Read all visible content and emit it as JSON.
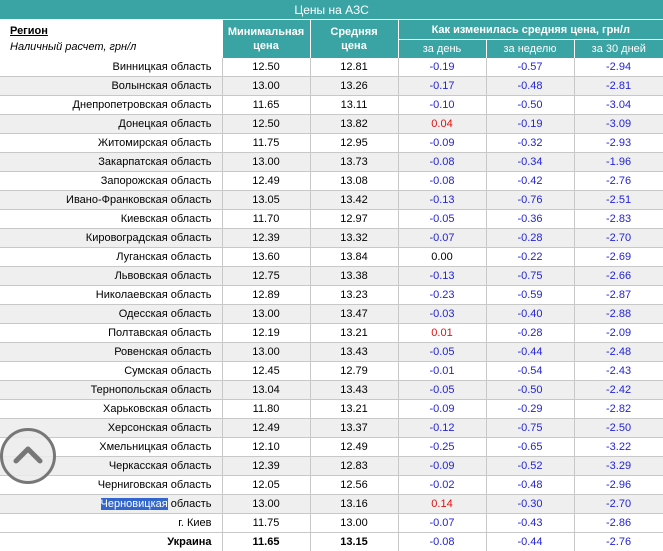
{
  "title": "Цены на АЗС",
  "header": {
    "region_label": "Регион",
    "region_sub": "Наличный расчет, грн/л",
    "min_price": [
      "Минимальная",
      "цена"
    ],
    "avg_price": [
      "Средняя",
      "цена"
    ],
    "change_group": "Как изменилась средняя цена, грн/л",
    "per_day": "за день",
    "per_week": "за неделю",
    "per_30_days": "за 30 дней"
  },
  "rows": [
    {
      "region": "Винницкая область",
      "min": "12.50",
      "avg": "12.81",
      "day": "-0.19",
      "week": "-0.57",
      "month": "-2.94"
    },
    {
      "region": "Волынская область",
      "min": "13.00",
      "avg": "13.26",
      "day": "-0.17",
      "week": "-0.48",
      "month": "-2.81"
    },
    {
      "region": "Днепропетровская область",
      "min": "11.65",
      "avg": "13.11",
      "day": "-0.10",
      "week": "-0.50",
      "month": "-3.04"
    },
    {
      "region": "Донецкая область",
      "min": "12.50",
      "avg": "13.82",
      "day": "0.04",
      "week": "-0.19",
      "month": "-3.09"
    },
    {
      "region": "Житомирская область",
      "min": "11.75",
      "avg": "12.95",
      "day": "-0.09",
      "week": "-0.32",
      "month": "-2.93"
    },
    {
      "region": "Закарпатская область",
      "min": "13.00",
      "avg": "13.73",
      "day": "-0.08",
      "week": "-0.34",
      "month": "-1.96"
    },
    {
      "region": "Запорожская область",
      "min": "12.49",
      "avg": "13.08",
      "day": "-0.08",
      "week": "-0.42",
      "month": "-2.76"
    },
    {
      "region": "Ивано-Франковская область",
      "min": "13.05",
      "avg": "13.42",
      "day": "-0.13",
      "week": "-0.76",
      "month": "-2.51"
    },
    {
      "region": "Киевская область",
      "min": "11.70",
      "avg": "12.97",
      "day": "-0.05",
      "week": "-0.36",
      "month": "-2.83"
    },
    {
      "region": "Кировоградская область",
      "min": "12.39",
      "avg": "13.32",
      "day": "-0.07",
      "week": "-0.28",
      "month": "-2.70"
    },
    {
      "region": "Луганская область",
      "min": "13.60",
      "avg": "13.84",
      "day": "0.00",
      "week": "-0.22",
      "month": "-2.69"
    },
    {
      "region": "Львовская область",
      "min": "12.75",
      "avg": "13.38",
      "day": "-0.13",
      "week": "-0.75",
      "month": "-2.66"
    },
    {
      "region": "Николаевская область",
      "min": "12.89",
      "avg": "13.23",
      "day": "-0.23",
      "week": "-0.59",
      "month": "-2.87"
    },
    {
      "region": "Одесская область",
      "min": "13.00",
      "avg": "13.47",
      "day": "-0.03",
      "week": "-0.40",
      "month": "-2.88"
    },
    {
      "region": "Полтавская область",
      "min": "12.19",
      "avg": "13.21",
      "day": "0.01",
      "week": "-0.28",
      "month": "-2.09"
    },
    {
      "region": "Ровенская область",
      "min": "13.00",
      "avg": "13.43",
      "day": "-0.05",
      "week": "-0.44",
      "month": "-2.48"
    },
    {
      "region": "Сумская область",
      "min": "12.45",
      "avg": "12.79",
      "day": "-0.01",
      "week": "-0.54",
      "month": "-2.43"
    },
    {
      "region": "Тернопольская область",
      "min": "13.04",
      "avg": "13.43",
      "day": "-0.05",
      "week": "-0.50",
      "month": "-2.42"
    },
    {
      "region": "Харьковская область",
      "min": "11.80",
      "avg": "13.21",
      "day": "-0.09",
      "week": "-0.29",
      "month": "-2.82"
    },
    {
      "region": "Херсонская область",
      "min": "12.49",
      "avg": "13.37",
      "day": "-0.12",
      "week": "-0.75",
      "month": "-2.50"
    },
    {
      "region": "Хмельницкая область",
      "min": "12.10",
      "avg": "12.49",
      "day": "-0.25",
      "week": "-0.65",
      "month": "-3.22"
    },
    {
      "region": "Черкасская область",
      "min": "12.39",
      "avg": "12.83",
      "day": "-0.09",
      "week": "-0.52",
      "month": "-3.29"
    },
    {
      "region": "Черниговская область",
      "min": "12.05",
      "avg": "12.56",
      "day": "-0.02",
      "week": "-0.48",
      "month": "-2.96"
    },
    {
      "region": "Черновицкая область",
      "region_hl": "Черновицкая",
      "region_rest": " область",
      "min": "13.00",
      "avg": "13.16",
      "day": "0.14",
      "week": "-0.30",
      "month": "-2.70"
    },
    {
      "region": "г. Киев",
      "min": "11.75",
      "avg": "13.00",
      "day": "-0.07",
      "week": "-0.43",
      "month": "-2.86"
    }
  ],
  "total": {
    "region": "Украина",
    "min": "11.65",
    "avg": "13.15",
    "day": "-0.08",
    "week": "-0.44",
    "month": "-2.76"
  },
  "scroll_up_icon": "chevron-up-circle-icon"
}
